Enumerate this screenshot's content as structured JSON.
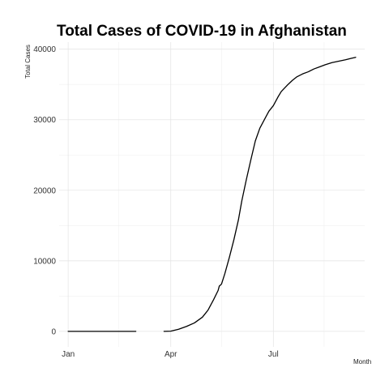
{
  "chart_data": {
    "type": "line",
    "title": "Total Cases of COVID-19 in Afghanistan",
    "xlabel": "Month",
    "ylabel": "Total Cases",
    "x_ticks": [
      {
        "label": "Jan",
        "date": "2020-01-01"
      },
      {
        "label": "Apr",
        "date": "2020-04-01"
      },
      {
        "label": "Jul",
        "date": "2020-07-01"
      }
    ],
    "y_ticks": [
      0,
      10000,
      20000,
      30000,
      40000
    ],
    "xlim": [
      "2019-12-24",
      "2020-09-20"
    ],
    "ylim": [
      -2200,
      41000
    ],
    "grid": true,
    "legend": "none",
    "series": [
      {
        "segments": [
          [
            {
              "x": "2020-01-01",
              "y": 0
            },
            {
              "x": "2020-02-10",
              "y": 0
            },
            {
              "x": "2020-03-01",
              "y": 0
            }
          ],
          [
            {
              "x": "2020-03-26",
              "y": 0
            },
            {
              "x": "2020-04-01",
              "y": 30
            },
            {
              "x": "2020-04-08",
              "y": 300
            },
            {
              "x": "2020-04-15",
              "y": 700
            },
            {
              "x": "2020-04-22",
              "y": 1200
            },
            {
              "x": "2020-04-29",
              "y": 2000
            },
            {
              "x": "2020-05-04",
              "y": 3000
            },
            {
              "x": "2020-05-09",
              "y": 4500
            },
            {
              "x": "2020-05-13",
              "y": 5800
            },
            {
              "x": "2020-05-14",
              "y": 6400
            },
            {
              "x": "2020-05-16",
              "y": 6700
            },
            {
              "x": "2020-05-19",
              "y": 8200
            },
            {
              "x": "2020-05-23",
              "y": 10500
            },
            {
              "x": "2020-05-27",
              "y": 13000
            },
            {
              "x": "2020-05-31",
              "y": 15800
            },
            {
              "x": "2020-06-03",
              "y": 18500
            },
            {
              "x": "2020-06-07",
              "y": 21500
            },
            {
              "x": "2020-06-11",
              "y": 24300
            },
            {
              "x": "2020-06-15",
              "y": 27000
            },
            {
              "x": "2020-06-19",
              "y": 28800
            },
            {
              "x": "2020-06-23",
              "y": 30000
            },
            {
              "x": "2020-06-27",
              "y": 31200
            },
            {
              "x": "2020-07-01",
              "y": 32000
            },
            {
              "x": "2020-07-05",
              "y": 33200
            },
            {
              "x": "2020-07-08",
              "y": 34000
            },
            {
              "x": "2020-07-11",
              "y": 34500
            },
            {
              "x": "2020-07-14",
              "y": 35000
            },
            {
              "x": "2020-07-18",
              "y": 35600
            },
            {
              "x": "2020-07-22",
              "y": 36100
            },
            {
              "x": "2020-07-27",
              "y": 36500
            },
            {
              "x": "2020-08-01",
              "y": 36800
            },
            {
              "x": "2020-08-06",
              "y": 37200
            },
            {
              "x": "2020-08-11",
              "y": 37500
            },
            {
              "x": "2020-08-16",
              "y": 37800
            },
            {
              "x": "2020-08-22",
              "y": 38100
            },
            {
              "x": "2020-08-28",
              "y": 38300
            },
            {
              "x": "2020-09-03",
              "y": 38500
            },
            {
              "x": "2020-09-08",
              "y": 38700
            },
            {
              "x": "2020-09-12",
              "y": 38850
            }
          ]
        ]
      }
    ]
  }
}
